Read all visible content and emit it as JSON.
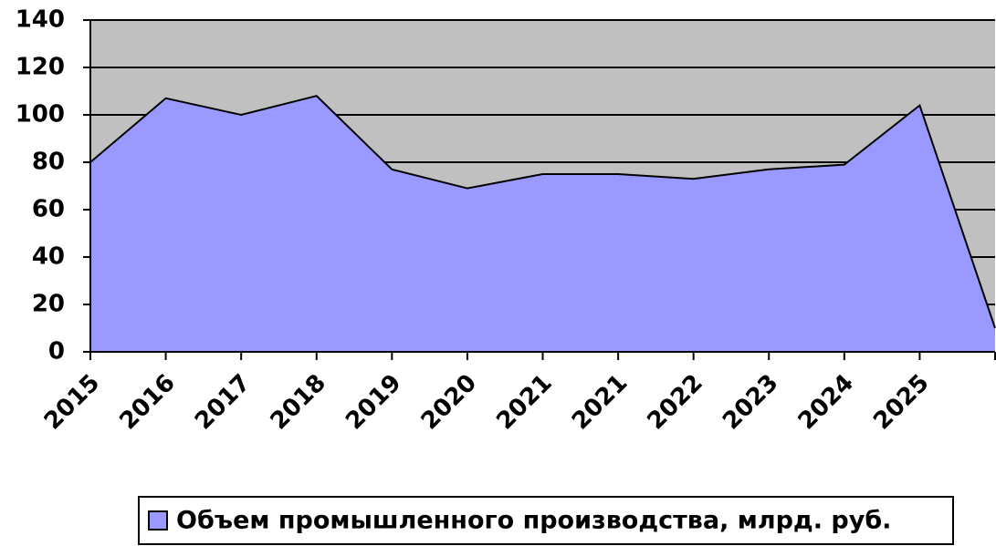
{
  "chart_data": {
    "type": "area",
    "categories": [
      "2015",
      "2016",
      "2017",
      "2018",
      "2019",
      "2020",
      "2021",
      "2021",
      "2022",
      "2023",
      "2024",
      "2025",
      null
    ],
    "series": [
      {
        "name": "Объем промышленного производства, млрд. руб.",
        "color": "#9999ff",
        "values": [
          80,
          107,
          100,
          108,
          77,
          69,
          75,
          75,
          73,
          77,
          79,
          104,
          10
        ]
      }
    ],
    "ylim": [
      0,
      140
    ],
    "yticks": [
      0,
      20,
      40,
      60,
      80,
      100,
      120,
      140
    ],
    "grid": true,
    "plot_background": "#c0c0c0",
    "legend": "bottom"
  }
}
